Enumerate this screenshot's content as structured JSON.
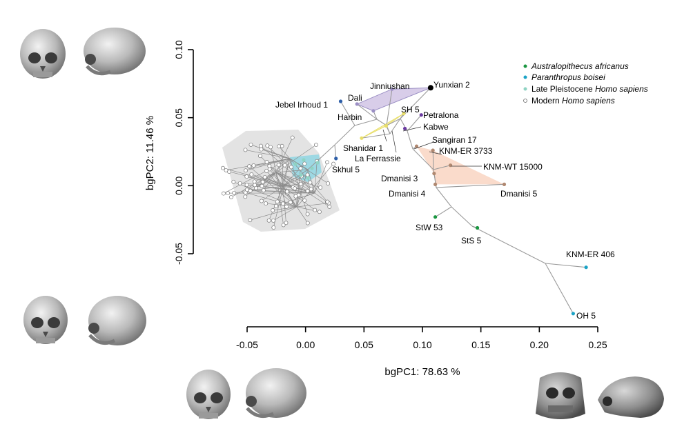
{
  "chart_data": {
    "type": "scatter",
    "xlabel": "bgPC1: 78.63 %",
    "ylabel": "bgPC2: 11.46 %",
    "xlim": [
      -0.05,
      0.25
    ],
    "ylim": [
      -0.05,
      0.1
    ],
    "xticks": [
      "-0.05",
      "0.00",
      "0.05",
      "0.10",
      "0.15",
      "0.20",
      "0.25"
    ],
    "yticks": [
      "-0.05",
      "0.00",
      "0.05",
      "0.10"
    ],
    "legend_position": "top-right",
    "legend": [
      {
        "plain1": "",
        "italic": "Australopithecus africanus",
        "plain2": "",
        "color": "#1a9641"
      },
      {
        "plain1": "",
        "italic": "Paranthropus boisei",
        "plain2": "",
        "color": "#1ba3c6"
      },
      {
        "plain1": "Late Pleistocene ",
        "italic": "Homo sapiens",
        "plain2": "",
        "color": "#8fd3c3"
      },
      {
        "plain1": "Modern ",
        "italic": "Homo sapiens",
        "plain2": "",
        "color": "#ffffff"
      }
    ],
    "specimens": [
      {
        "name": "Yunxian 2",
        "x": 0.107,
        "y": 0.072,
        "color": "#000000"
      },
      {
        "name": "Jinniushan",
        "x": 0.074,
        "y": 0.071,
        "color": "#9b8fc4"
      },
      {
        "name": "Dali",
        "x": 0.044,
        "y": 0.06,
        "color": "#9b8fc4"
      },
      {
        "name": "Harbin",
        "x": 0.058,
        "y": 0.055,
        "color": "#9b8fc4"
      },
      {
        "name": "Jebel Irhoud 1",
        "x": 0.03,
        "y": 0.062,
        "color": "#2e5fa8"
      },
      {
        "name": "SH 5",
        "x": 0.084,
        "y": 0.053,
        "color": "#e8de6a"
      },
      {
        "name": "Petralona",
        "x": 0.099,
        "y": 0.052,
        "color": "#6a3aa0"
      },
      {
        "name": "Kabwe",
        "x": 0.085,
        "y": 0.042,
        "color": "#6a3aa0"
      },
      {
        "name": "Shanidar 1",
        "x": 0.048,
        "y": 0.035,
        "color": "#e8de6a"
      },
      {
        "name": "La Ferrassie",
        "x": 0.069,
        "y": 0.044,
        "color": "#e8de6a"
      },
      {
        "name": "Skhul 5",
        "x": 0.026,
        "y": 0.02,
        "color": "#2e5fa8"
      },
      {
        "name": "Sangiran 17",
        "x": 0.095,
        "y": 0.029,
        "color": "#b08870"
      },
      {
        "name": "KNM-ER 3733",
        "x": 0.109,
        "y": 0.026,
        "color": "#b08870"
      },
      {
        "name": "KNM-WT 15000",
        "x": 0.124,
        "y": 0.015,
        "color": "#b08870"
      },
      {
        "name": "Dmanisi 3",
        "x": 0.11,
        "y": 0.009,
        "color": "#b08870"
      },
      {
        "name": "Dmanisi 4",
        "x": 0.111,
        "y": 0.001,
        "color": "#b08870"
      },
      {
        "name": "Dmanisi 5",
        "x": 0.17,
        "y": 0.001,
        "color": "#b08870"
      },
      {
        "name": "StW 53",
        "x": 0.111,
        "y": -0.023,
        "color": "#1a9641"
      },
      {
        "name": "StS 5",
        "x": 0.147,
        "y": -0.031,
        "color": "#1a9641"
      },
      {
        "name": "KNM-ER 406",
        "x": 0.24,
        "y": -0.06,
        "color": "#1ba3c6"
      },
      {
        "name": "OH 5",
        "x": 0.229,
        "y": -0.094,
        "color": "#1ba3c6"
      }
    ]
  }
}
